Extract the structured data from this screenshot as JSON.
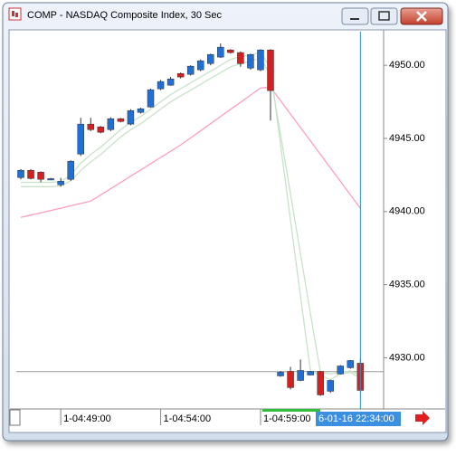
{
  "chart_data": {
    "type": "candlestick",
    "title": "COMP - NASDAQ Composite Index, 30 Sec",
    "categories": [
      null,
      null,
      null,
      null,
      "1-04:49:00",
      null,
      null,
      null,
      null,
      null,
      null,
      null,
      null,
      null,
      "1-04:54:00",
      null,
      null,
      null,
      null,
      null,
      null,
      null,
      null,
      null,
      "1-04:59:00",
      null,
      null,
      null,
      null,
      null,
      null,
      null,
      null,
      null,
      null
    ],
    "open": [
      4942.32,
      4942.82,
      4942.69,
      4942.2,
      4941.83,
      4942.2,
      4943.93,
      4945.98,
      4945.79,
      4945.6,
      4946.35,
      4945.98,
      4946.78,
      4947.15,
      4948.39,
      4948.64,
      4949.44,
      4949.38,
      4949.69,
      4950.12,
      4950.56,
      4951.05,
      4950.87,
      4949.81,
      4949.69,
      4951.05,
      4928.76,
      4929.07,
      4928.45,
      4928.82,
      4929.07,
      4927.71,
      4928.89,
      4929.32,
      4929.63
    ],
    "high": [
      4942.9,
      4942.9,
      4942.75,
      4942.3,
      4942.3,
      4943.5,
      4946.41,
      4946.41,
      4945.85,
      4946.45,
      4946.4,
      4947.0,
      4947.1,
      4948.4,
      4949.0,
      4949.2,
      4949.5,
      4950.0,
      4950.4,
      4950.8,
      4951.49,
      4951.1,
      4950.95,
      4950.8,
      4951.1,
      4951.1,
      4929.1,
      4929.38,
      4929.88,
      4929.1,
      4929.1,
      4928.5,
      4929.5,
      4929.85,
      4929.9
    ],
    "low": [
      4942.2,
      4942.2,
      4942.01,
      4942.14,
      4941.7,
      4942.1,
      4943.8,
      4945.5,
      4945.35,
      4945.5,
      4946.1,
      4945.9,
      4946.7,
      4947.1,
      4948.3,
      4948.6,
      4949.1,
      4949.3,
      4949.6,
      4950.0,
      4950.5,
      4950.8,
      4949.9,
      4949.7,
      4949.6,
      4946.22,
      4928.7,
      4927.83,
      4928.4,
      4928.8,
      4927.4,
      4927.6,
      4928.85,
      4929.25,
      4927.7
    ],
    "close": [
      4942.82,
      4942.26,
      4942.2,
      4942.25,
      4942.07,
      4943.44,
      4945.98,
      4945.6,
      4945.42,
      4946.35,
      4946.16,
      4946.9,
      4947.03,
      4948.33,
      4948.89,
      4949.07,
      4949.2,
      4949.94,
      4950.31,
      4950.74,
      4951.24,
      4950.87,
      4950.12,
      4950.74,
      4951.05,
      4948.27,
      4929.01,
      4927.96,
      4929.13,
      4929.07,
      4927.46,
      4928.45,
      4929.44,
      4929.81,
      4927.77
    ],
    "up_color": "#1f6fd6",
    "down_color": "#d61f1f",
    "lines": [
      {
        "color": "#ff9ebd",
        "values": [
          4939.6,
          4939.76,
          4939.91,
          4940.07,
          4940.23,
          4940.39,
          4940.55,
          4940.71,
          4941.14,
          4941.56,
          4941.99,
          4942.42,
          4942.84,
          4943.27,
          4943.7,
          4944.12,
          4944.55,
          4945.04,
          4945.52,
          4946.01,
          4946.5,
          4946.99,
          4947.47,
          4947.96,
          4948.45,
          4948.5,
          4947.58,
          4946.66,
          4945.74,
          4944.82,
          4943.9,
          4942.98,
          4942.06,
          4941.14,
          4940.22
        ]
      },
      {
        "color": "#c8e2c8",
        "values": [
          4942.0,
          4942.0,
          4942.0,
          4942.0,
          4942.05,
          4942.5,
          4943.3,
          4943.9,
          4944.4,
          4945.0,
          4945.6,
          4946.1,
          4946.5,
          4947.0,
          4947.5,
          4948.0,
          4948.4,
          4948.8,
          4949.2,
          4949.6,
          4950.0,
          4950.4,
          4950.6,
          4950.7,
          4950.9,
          4949.8,
          4944.6,
          4939.4,
          4934.2,
          4929.1,
          4928.8,
          4928.5,
          4928.9,
          4929.0,
          4928.6
        ]
      },
      {
        "color": "#c8e2c8",
        "values": [
          4941.7,
          4941.7,
          4941.7,
          4941.7,
          4941.75,
          4942.1,
          4942.8,
          4943.4,
          4943.9,
          4944.5,
          4945.1,
          4945.6,
          4946.0,
          4946.5,
          4947.0,
          4947.5,
          4947.9,
          4948.3,
          4948.7,
          4949.1,
          4949.5,
          4949.9,
          4950.1,
          4950.3,
          4950.5,
          4949.3,
          4945.3,
          4941.2,
          4937.1,
          4933.0,
          4929.0,
          4928.9,
          4929.0,
          4929.1,
          4928.8
        ]
      }
    ],
    "hline": 4929.05,
    "cursor_label": "6-01-16 22:34:00",
    "ylim": [
      4926.5,
      4952.3
    ],
    "yticks": [
      {
        "value": 4930,
        "label": "4930.00"
      },
      {
        "value": 4935,
        "label": "4935.00"
      },
      {
        "value": 4940,
        "label": "4940.00"
      },
      {
        "value": 4945,
        "label": "4945.00"
      },
      {
        "value": 4950,
        "label": "4950.00"
      }
    ]
  }
}
